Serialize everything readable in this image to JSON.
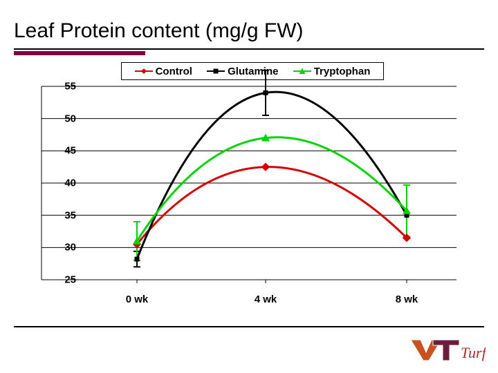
{
  "title": "Leaf Protein content (mg/g FW)",
  "accent_color": "#800040",
  "chart": {
    "type": "line",
    "background_color": "#ffffff",
    "grid_color": "#000000",
    "grid_line_width": 1,
    "series_line_width": 3,
    "ylim": [
      25,
      55
    ],
    "yticks": [
      25,
      30,
      35,
      40,
      45,
      50,
      55
    ],
    "xtick_labels": [
      "0 wk",
      "4 wk",
      "8 wk"
    ],
    "x_positions": [
      0.23,
      0.54,
      0.88
    ],
    "series": [
      {
        "name": "Control",
        "color": "#d40000",
        "marker": "diamond",
        "marker_size": 8,
        "values": [
          30.5,
          42.5,
          31.5
        ],
        "err": [
          null,
          null,
          null
        ]
      },
      {
        "name": "Glutamine",
        "color": "#000000",
        "marker": "square",
        "marker_size": 7,
        "values": [
          28.2,
          54.0,
          35.0
        ],
        "err": [
          1.2,
          3.5,
          null
        ]
      },
      {
        "name": "Tryptophan",
        "color": "#00d400",
        "marker": "triangle",
        "marker_size": 9,
        "values": [
          31.0,
          47.0,
          35.7
        ],
        "err": [
          3.0,
          null,
          4.0
        ]
      }
    ],
    "tick_fontsize": 15,
    "tick_fontweight": 700,
    "legend_fontsize": 15
  },
  "logo": {
    "vt_orange": "#c9501f",
    "vt_maroon": "#6a1e3a",
    "turf_text": "Turf"
  }
}
